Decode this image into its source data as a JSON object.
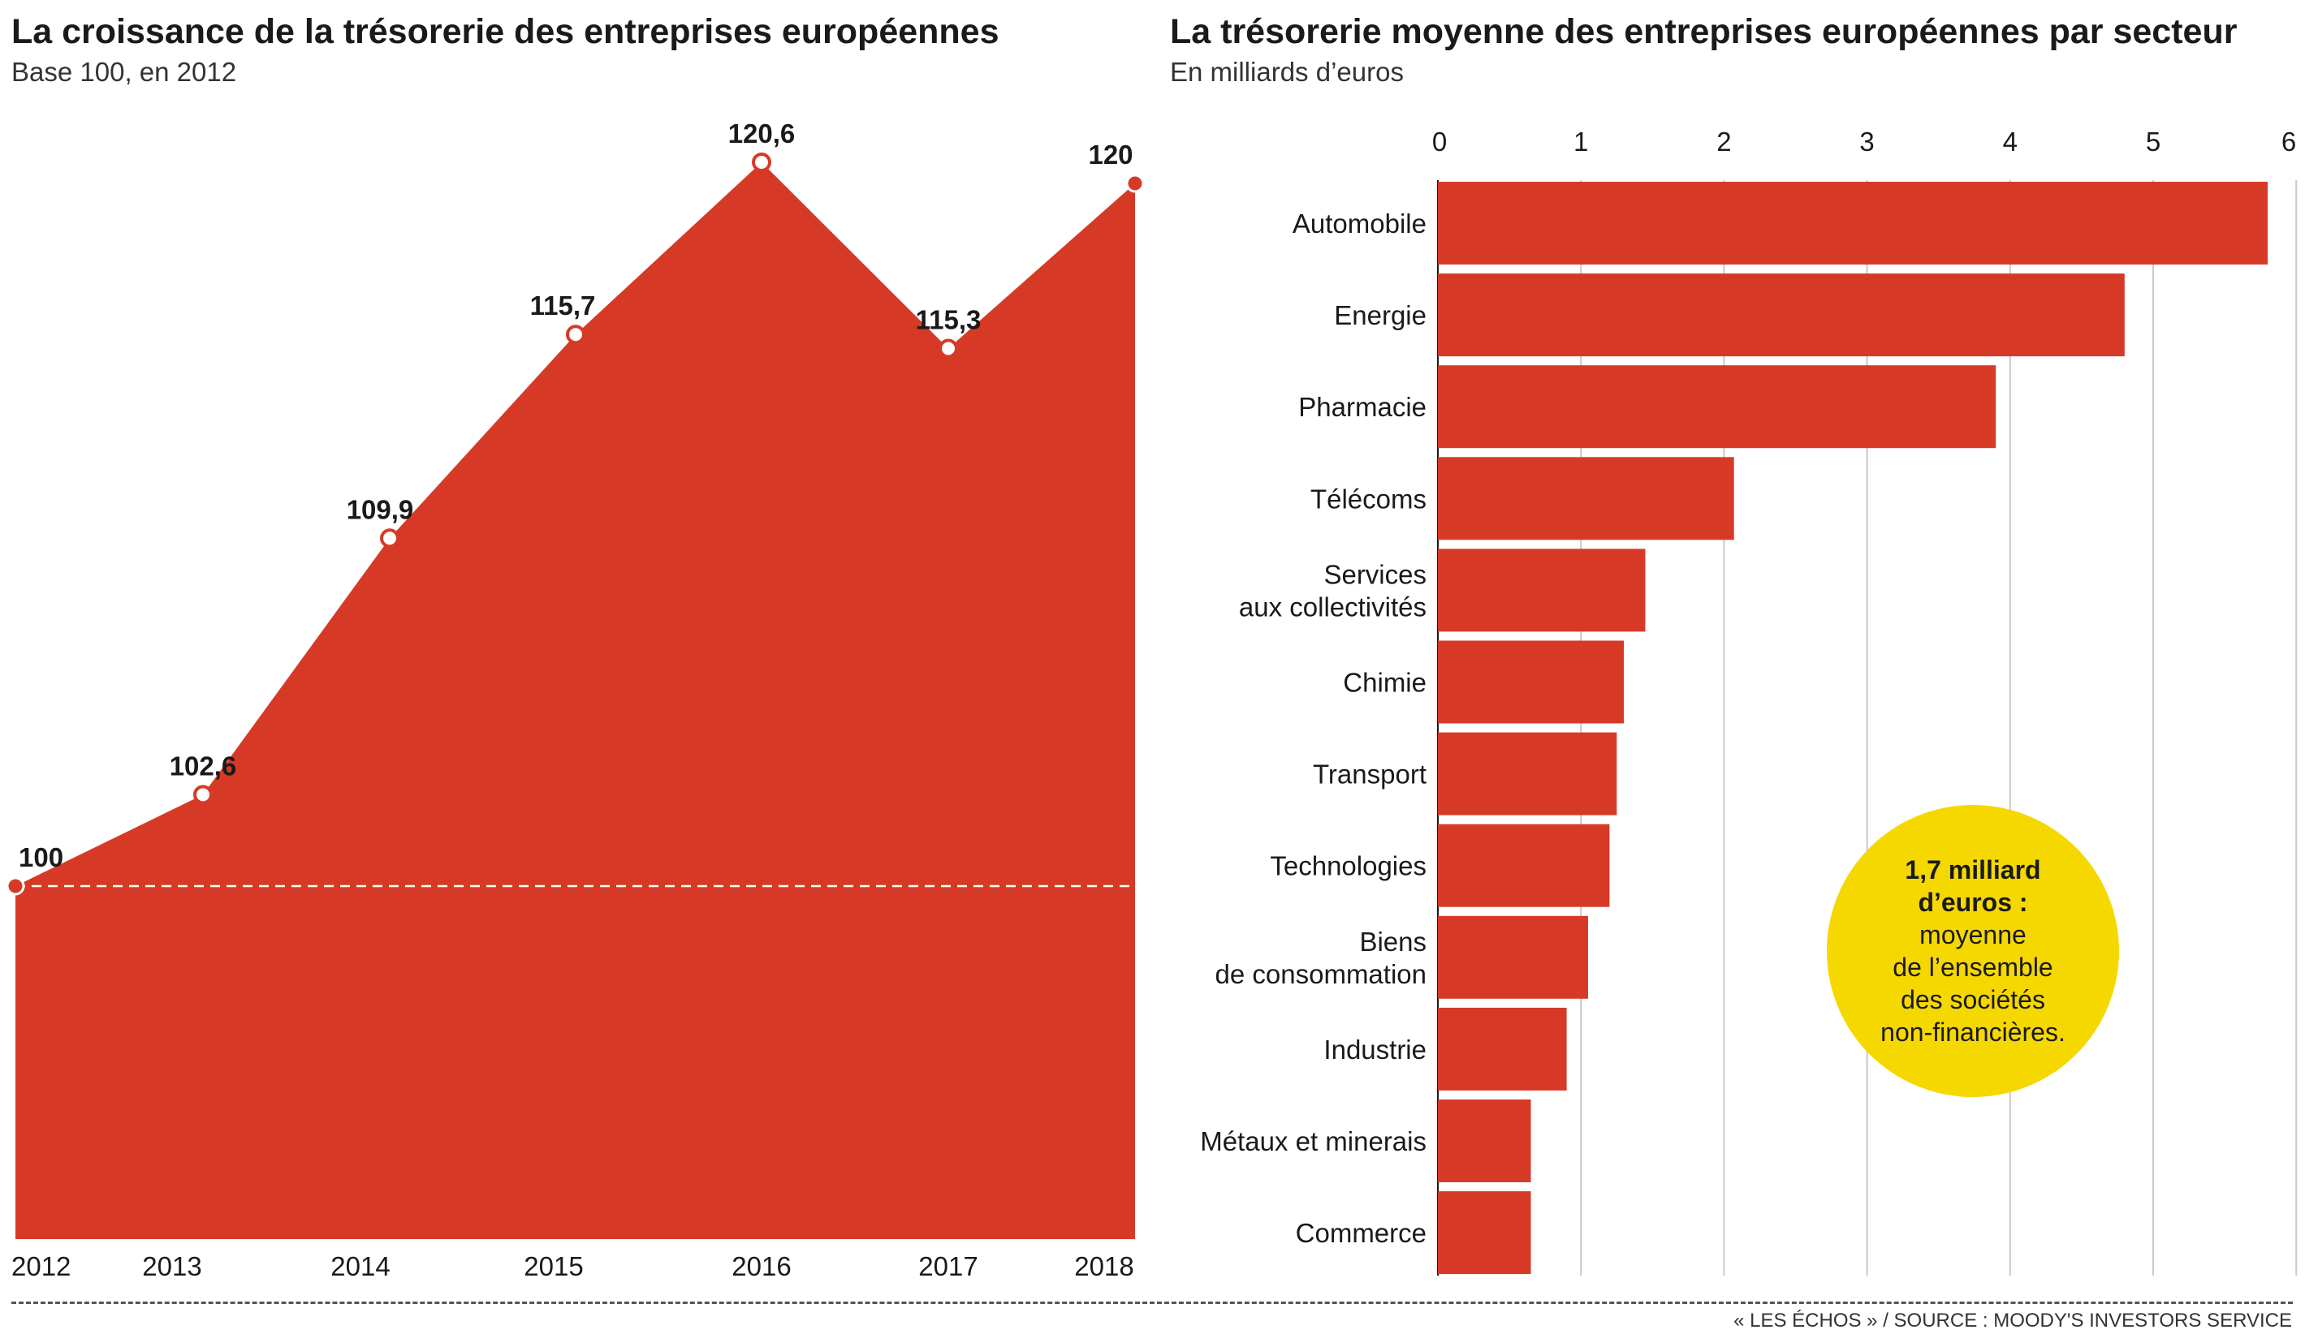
{
  "left_chart": {
    "title": "La croissance de la trésorerie des entreprises européennes",
    "subtitle": "Base 100, en 2012"
  },
  "right_chart": {
    "title": "La trésorerie moyenne des entreprises européennes par secteur",
    "subtitle": "En milliards d’euros"
  },
  "callout": {
    "line1": "1,7 milliard",
    "line2": "d’euros :",
    "line3": "moyenne",
    "line4": "de l’ensemble",
    "line5": "des sociétés",
    "line6": "non-financières."
  },
  "source": "« LES ÉCHOS » / SOURCE : MOODY'S INVESTORS SERVICE",
  "colors": {
    "fill": "#d63a27",
    "callout": "#f5d800",
    "grid": "#c9c9c9"
  },
  "chart_data": [
    {
      "type": "area",
      "title": "La croissance de la trésorerie des entreprises européennes",
      "subtitle": "Base 100, en 2012",
      "x": [
        "2012",
        "2013",
        "2014",
        "2015",
        "2016",
        "2017",
        "2018"
      ],
      "series": [
        {
          "values": [
            100,
            102.6,
            109.9,
            115.7,
            120.6,
            115.3,
            120
          ],
          "labels": [
            "100",
            "102,6",
            "109,9",
            "115,7",
            "120,6",
            "115,3",
            "120"
          ]
        }
      ],
      "reference_line": 100,
      "ylim": [
        90,
        122
      ],
      "grid": false
    },
    {
      "type": "bar",
      "orientation": "horizontal",
      "title": "La trésorerie moyenne des entreprises européennes par secteur",
      "subtitle": "En milliards d’euros",
      "categories": [
        [
          "Automobile"
        ],
        [
          "Energie"
        ],
        [
          "Pharmacie"
        ],
        [
          "Télécoms"
        ],
        [
          "Services",
          "aux collectivités"
        ],
        [
          "Chimie"
        ],
        [
          "Transport"
        ],
        [
          "Technologies"
        ],
        [
          "Biens",
          "de consommation"
        ],
        [
          "Industrie"
        ],
        [
          "Métaux et minerais"
        ],
        [
          "Commerce"
        ]
      ],
      "values": [
        5.8,
        4.8,
        3.9,
        2.07,
        1.45,
        1.3,
        1.25,
        1.2,
        1.05,
        0.9,
        0.65,
        0.65
      ],
      "xlim": [
        0,
        6
      ],
      "ticks": [
        "0",
        "1",
        "2",
        "3",
        "4",
        "5",
        "6"
      ],
      "tick_position": "top",
      "grid": true
    }
  ]
}
